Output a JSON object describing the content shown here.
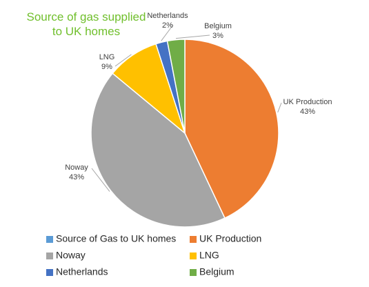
{
  "chart_data": {
    "type": "pie",
    "title": "Source of gas supplied to UK homes",
    "title_color": "#70bf2c",
    "categories": [
      "Source of Gas to UK homes",
      "UK Production",
      "Noway",
      "LNG",
      "Netherlands",
      "Belgium"
    ],
    "values": [
      0,
      43,
      43,
      9,
      2,
      3
    ],
    "value_labels": [
      null,
      "43%",
      "43%",
      "9%",
      "2%",
      "3%"
    ],
    "colors": [
      "#5b9bd5",
      "#ed7d31",
      "#a5a5a5",
      "#ffc000",
      "#4472c4",
      "#70ad47"
    ],
    "legend": "bottom"
  }
}
